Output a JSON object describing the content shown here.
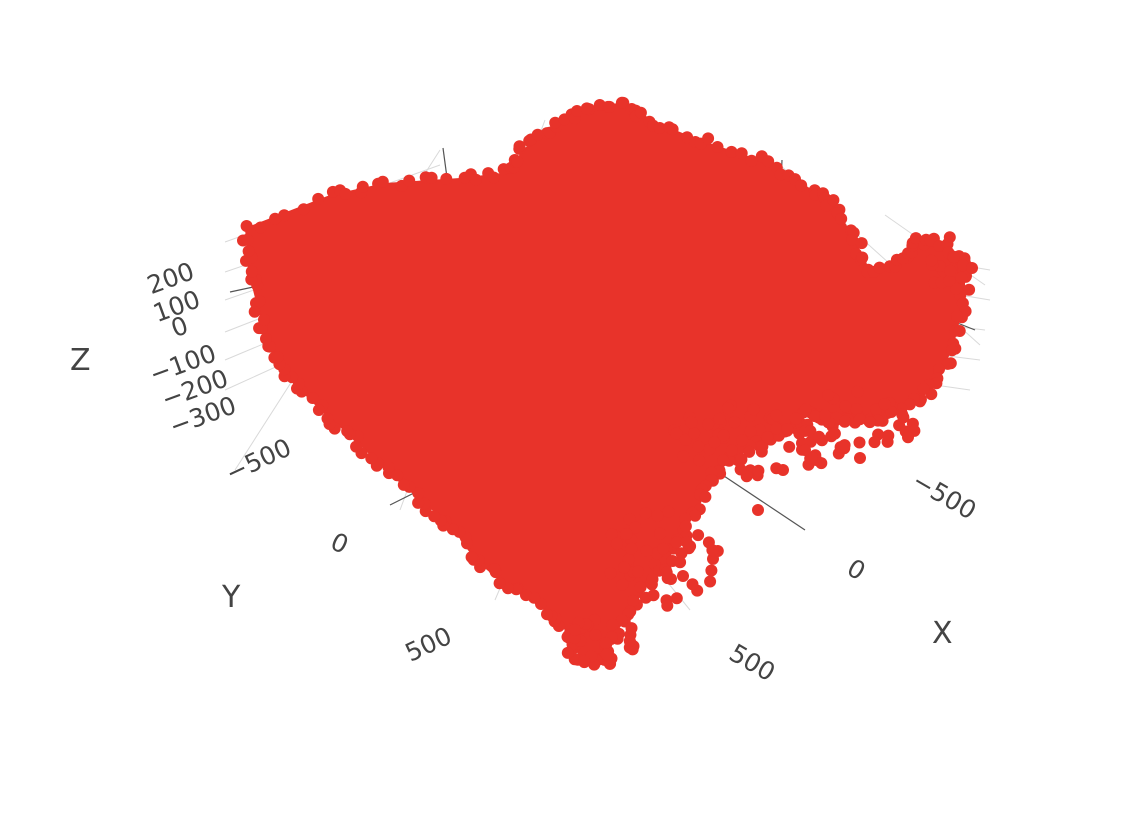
{
  "chart_data": {
    "type": "scatter3d",
    "title": "",
    "marker_color": "#e8332a",
    "grid": true,
    "background": "#ffffff",
    "axes": {
      "x": {
        "title": "X",
        "ticks": [
          "−500",
          "0",
          "500"
        ],
        "tick_values": [
          -500,
          0,
          500
        ],
        "range": [
          -800,
          800
        ]
      },
      "y": {
        "title": "Y",
        "ticks": [
          "−500",
          "0",
          "500"
        ],
        "tick_values": [
          -500,
          0,
          500
        ],
        "range": [
          -900,
          900
        ]
      },
      "z": {
        "title": "Z",
        "ticks": [
          "200",
          "100",
          "0",
          "−100",
          "−200",
          "−300"
        ],
        "tick_values": [
          200,
          100,
          0,
          -100,
          -200,
          -300
        ],
        "range": [
          -350,
          250
        ]
      }
    },
    "series": [
      {
        "marker": "circle",
        "approx_x_range": [
          -750,
          800
        ],
        "approx_y_range": [
          -900,
          850
        ],
        "approx_z_range": [
          -350,
          250
        ]
      }
    ]
  }
}
